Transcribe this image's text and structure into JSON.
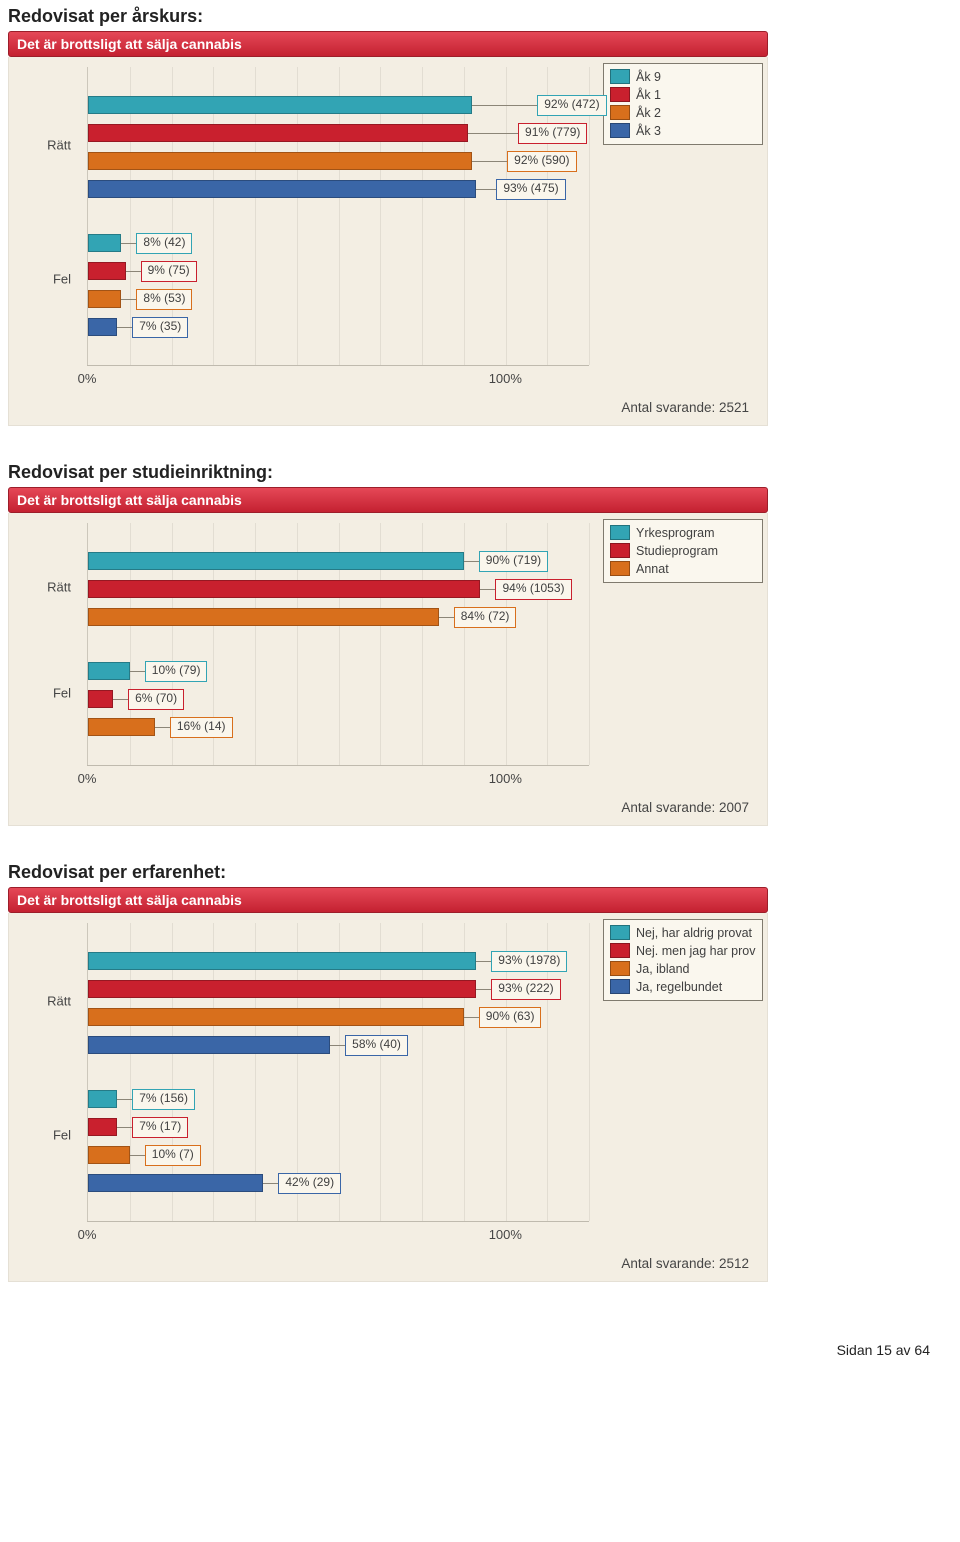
{
  "footer": "Sidan 15 av 64",
  "colors": {
    "teal": "#32a4b4",
    "red": "#c9202e",
    "orange": "#d86f1c",
    "blue": "#3a66a7"
  },
  "x_axis": {
    "ticks": [
      0,
      100
    ],
    "labels": [
      "0%",
      "100%"
    ],
    "range": 120
  },
  "charts": [
    {
      "section_title": "Redovisat per årskurs:",
      "header": "Det är brottsligt att sälja cannabis",
      "respondents_label": "Antal svarande: 2521",
      "legend": [
        {
          "label": "Åk 9",
          "colorKey": "teal"
        },
        {
          "label": "Åk 1",
          "colorKey": "red"
        },
        {
          "label": "Åk 2",
          "colorKey": "orange"
        },
        {
          "label": "Åk 3",
          "colorKey": "blue"
        }
      ],
      "groups": [
        {
          "name": "Rätt",
          "bars": [
            {
              "colorKey": "teal",
              "value": 92,
              "label": "92% (472)",
              "label_offset": 13
            },
            {
              "colorKey": "red",
              "value": 91,
              "label": "91% (779)",
              "label_offset": 10
            },
            {
              "colorKey": "orange",
              "value": 92,
              "label": "92% (590)",
              "label_offset": 7
            },
            {
              "colorKey": "blue",
              "value": 93,
              "label": "93% (475)",
              "label_offset": 4
            }
          ]
        },
        {
          "name": "Fel",
          "bars": [
            {
              "colorKey": "teal",
              "value": 8,
              "label": "8% (42)",
              "label_offset": 3
            },
            {
              "colorKey": "red",
              "value": 9,
              "label": "9% (75)",
              "label_offset": 3
            },
            {
              "colorKey": "orange",
              "value": 8,
              "label": "8% (53)",
              "label_offset": 3
            },
            {
              "colorKey": "blue",
              "value": 7,
              "label": "7% (35)",
              "label_offset": 3
            }
          ]
        }
      ]
    },
    {
      "section_title": "Redovisat per studieinriktning:",
      "header": "Det är brottsligt att sälja cannabis",
      "respondents_label": "Antal svarande: 2007",
      "legend": [
        {
          "label": "Yrkesprogram",
          "colorKey": "teal"
        },
        {
          "label": "Studieprogram",
          "colorKey": "red"
        },
        {
          "label": "Annat",
          "colorKey": "orange"
        }
      ],
      "groups": [
        {
          "name": "Rätt",
          "bars": [
            {
              "colorKey": "teal",
              "value": 90,
              "label": "90% (719)",
              "label_offset": 3
            },
            {
              "colorKey": "red",
              "value": 94,
              "label": "94% (1053)",
              "label_offset": 3
            },
            {
              "colorKey": "orange",
              "value": 84,
              "label": "84% (72)",
              "label_offset": 3
            }
          ]
        },
        {
          "name": "Fel",
          "bars": [
            {
              "colorKey": "teal",
              "value": 10,
              "label": "10% (79)",
              "label_offset": 3
            },
            {
              "colorKey": "red",
              "value": 6,
              "label": "6% (70)",
              "label_offset": 3
            },
            {
              "colorKey": "orange",
              "value": 16,
              "label": "16% (14)",
              "label_offset": 3
            }
          ]
        }
      ]
    },
    {
      "section_title": "Redovisat per erfarenhet:",
      "header": "Det är brottsligt att sälja cannabis",
      "respondents_label": "Antal svarande: 2512",
      "legend": [
        {
          "label": "Nej, har aldrig provat",
          "colorKey": "teal"
        },
        {
          "label": "Nej. men jag har prov",
          "colorKey": "red"
        },
        {
          "label": "Ja, ibland",
          "colorKey": "orange"
        },
        {
          "label": "Ja, regelbundet",
          "colorKey": "blue"
        }
      ],
      "groups": [
        {
          "name": "Rätt",
          "bars": [
            {
              "colorKey": "teal",
              "value": 93,
              "label": "93% (1978)",
              "label_offset": 3
            },
            {
              "colorKey": "red",
              "value": 93,
              "label": "93% (222)",
              "label_offset": 3
            },
            {
              "colorKey": "orange",
              "value": 90,
              "label": "90% (63)",
              "label_offset": 3
            },
            {
              "colorKey": "blue",
              "value": 58,
              "label": "58% (40)",
              "label_offset": 3
            }
          ]
        },
        {
          "name": "Fel",
          "bars": [
            {
              "colorKey": "teal",
              "value": 7,
              "label": "7% (156)",
              "label_offset": 3
            },
            {
              "colorKey": "red",
              "value": 7,
              "label": "7% (17)",
              "label_offset": 3
            },
            {
              "colorKey": "orange",
              "value": 10,
              "label": "10% (7)",
              "label_offset": 3
            },
            {
              "colorKey": "blue",
              "value": 42,
              "label": "42% (29)",
              "label_offset": 3
            }
          ]
        }
      ]
    }
  ]
}
